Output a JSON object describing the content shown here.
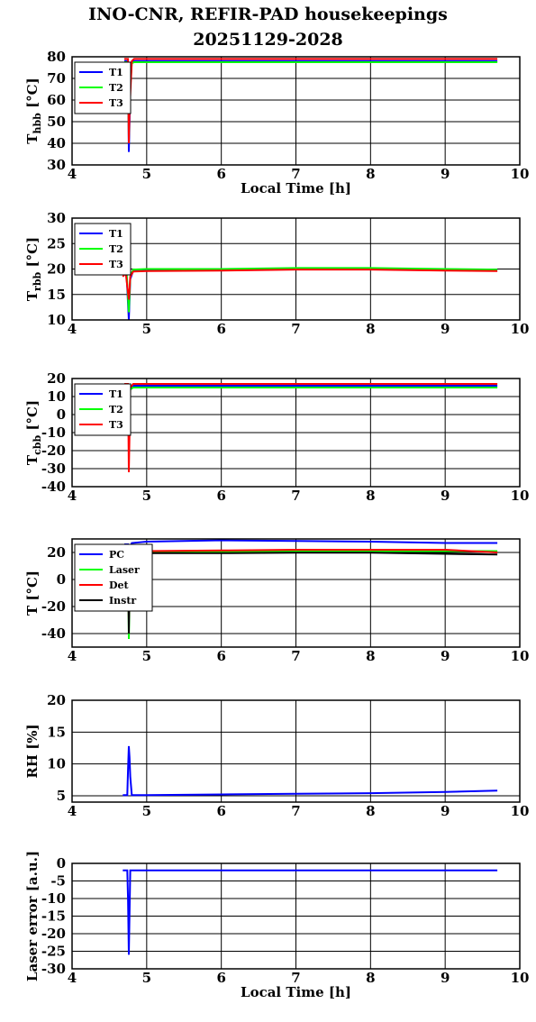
{
  "title": "INO-CNR, REFIR-PAD housekeepings",
  "subtitle": "20251129-2028",
  "colors": {
    "T1": "#0000ff",
    "T2": "#00ff00",
    "T3": "#ff0000",
    "Instr": "#000000"
  },
  "chart_data": [
    {
      "type": "line",
      "ylabel": "T_hbb [°C]",
      "ylabel_main": "T",
      "ylabel_sub": "hbb",
      "ylabel_unit": "[°C]",
      "xlabel": "Local Time [h]",
      "xlim": [
        4,
        10
      ],
      "ylim": [
        30,
        80
      ],
      "xticks": [
        "4",
        "5",
        "6",
        "7",
        "8",
        "9",
        "10"
      ],
      "yticks": [
        "30",
        "40",
        "50",
        "60",
        "70",
        "80"
      ],
      "grid": true,
      "legend_position": "top-left",
      "series": [
        {
          "name": "T1",
          "color": "#0000ff",
          "x": [
            4.7,
            4.75,
            4.76,
            4.77,
            4.78,
            4.8,
            4.83,
            5.0,
            6.0,
            7.0,
            8.0,
            9.0,
            9.7
          ],
          "y": [
            78,
            78,
            36,
            50,
            76,
            77,
            78,
            78,
            78,
            78,
            78,
            78,
            78
          ]
        },
        {
          "name": "T2",
          "color": "#00ff00",
          "x": [
            4.7,
            4.75,
            4.76,
            4.77,
            4.8,
            4.83,
            5.0,
            6.0,
            7.0,
            8.0,
            9.0,
            9.7
          ],
          "y": [
            77.5,
            77.5,
            42,
            60,
            77,
            77.5,
            77.5,
            77.5,
            77.5,
            77.5,
            77.5,
            77.5
          ]
        },
        {
          "name": "T3",
          "color": "#ff0000",
          "x": [
            4.7,
            4.75,
            4.76,
            4.77,
            4.8,
            4.83,
            5.0,
            6.0,
            7.0,
            8.0,
            9.0,
            9.7
          ],
          "y": [
            79,
            79,
            40,
            55,
            78,
            79,
            79,
            79,
            79,
            79,
            79,
            79
          ]
        }
      ]
    },
    {
      "type": "line",
      "ylabel": "T_rbb [°C]",
      "ylabel_main": "T",
      "ylabel_sub": "rbb",
      "ylabel_unit": "[°C]",
      "xlim": [
        4,
        10
      ],
      "ylim": [
        10,
        30
      ],
      "xticks": [
        "4",
        "5",
        "6",
        "7",
        "8",
        "9",
        "10"
      ],
      "yticks": [
        "10",
        "15",
        "20",
        "25",
        "30"
      ],
      "grid": true,
      "legend_position": "top-left",
      "series": [
        {
          "name": "T1",
          "color": "#0000ff",
          "x": [
            4.7,
            4.73,
            4.76,
            4.77,
            4.78,
            4.82,
            5.0,
            6.0,
            7.0,
            8.0,
            9.0,
            9.7
          ],
          "y": [
            19,
            19,
            10,
            14,
            18,
            19.7,
            19.8,
            19.8,
            20,
            20,
            19.8,
            19.7
          ]
        },
        {
          "name": "T2",
          "color": "#00ff00",
          "x": [
            4.7,
            4.73,
            4.76,
            4.77,
            4.78,
            4.82,
            5.0,
            6.0,
            7.0,
            8.0,
            9.0,
            9.7
          ],
          "y": [
            19.5,
            19.5,
            11.5,
            15,
            18.5,
            19.9,
            20,
            20,
            20.2,
            20.2,
            20,
            19.9
          ]
        },
        {
          "name": "T3",
          "color": "#ff0000",
          "x": [
            4.68,
            4.72,
            4.76,
            4.77,
            4.78,
            4.82,
            5.0,
            6.0,
            7.0,
            8.0,
            9.0,
            9.7
          ],
          "y": [
            18.5,
            19.2,
            14,
            16,
            18.5,
            19.5,
            19.6,
            19.7,
            19.9,
            19.9,
            19.7,
            19.6
          ]
        }
      ]
    },
    {
      "type": "line",
      "ylabel": "T_cbb [°C]",
      "ylabel_main": "T",
      "ylabel_sub": "cbb",
      "ylabel_unit": "[°C]",
      "xlim": [
        4,
        10
      ],
      "ylim": [
        -40,
        20
      ],
      "xticks": [
        "4",
        "5",
        "6",
        "7",
        "8",
        "9",
        "10"
      ],
      "yticks": [
        "-40",
        "-30",
        "-20",
        "-10",
        "0",
        "10",
        "20"
      ],
      "grid": true,
      "legend_position": "top-left",
      "series": [
        {
          "name": "T1",
          "color": "#0000ff",
          "x": [
            4.7,
            4.75,
            4.76,
            4.77,
            4.78,
            4.82,
            5.0,
            6.0,
            7.0,
            8.0,
            9.0,
            9.7
          ],
          "y": [
            16,
            16,
            10,
            13,
            15,
            16,
            16,
            16,
            16,
            16,
            16,
            16
          ]
        },
        {
          "name": "T2",
          "color": "#00ff00",
          "x": [
            4.7,
            4.75,
            4.76,
            4.77,
            4.78,
            4.82,
            5.0,
            6.0,
            7.0,
            8.0,
            9.0,
            9.7
          ],
          "y": [
            15,
            15,
            8,
            12,
            14,
            15,
            15,
            15,
            15,
            15,
            15,
            15
          ]
        },
        {
          "name": "T3",
          "color": "#ff0000",
          "x": [
            4.7,
            4.75,
            4.76,
            4.77,
            4.78,
            4.82,
            5.0,
            6.0,
            7.0,
            8.0,
            9.0,
            9.7
          ],
          "y": [
            17,
            17,
            -32,
            -10,
            15,
            17,
            17,
            17,
            17,
            17,
            17,
            17
          ]
        }
      ]
    },
    {
      "type": "line",
      "ylabel": "T [°C]",
      "xlim": [
        4,
        10
      ],
      "ylim": [
        -50,
        30
      ],
      "xticks": [
        "4",
        "5",
        "6",
        "7",
        "8",
        "9",
        "10"
      ],
      "yticks": [
        "-40",
        "-20",
        "0",
        "20"
      ],
      "grid": true,
      "legend_position": "top-left",
      "series": [
        {
          "name": "PC",
          "color": "#0000ff",
          "x": [
            4.7,
            4.75,
            4.76,
            4.77,
            4.8,
            5.0,
            6.0,
            7.0,
            8.0,
            9.0,
            9.7
          ],
          "y": [
            26,
            26,
            15,
            22,
            27,
            28,
            29,
            28.5,
            28,
            27,
            27
          ]
        },
        {
          "name": "Laser",
          "color": "#00ff00",
          "x": [
            4.7,
            4.75,
            4.76,
            4.77,
            4.8,
            5.0,
            6.0,
            7.0,
            8.0,
            9.0,
            9.7
          ],
          "y": [
            20,
            20,
            -44,
            -10,
            19,
            20,
            20.5,
            21,
            21,
            21,
            21
          ]
        },
        {
          "name": "Det",
          "color": "#ff0000",
          "x": [
            4.7,
            4.75,
            4.76,
            4.77,
            4.8,
            5.0,
            6.0,
            7.0,
            8.0,
            9.0,
            9.7
          ],
          "y": [
            20,
            20,
            -30,
            0,
            20,
            21,
            21.5,
            22,
            22,
            22,
            20
          ]
        },
        {
          "name": "Instr",
          "color": "#000000",
          "x": [
            4.7,
            4.75,
            4.76,
            4.77,
            4.8,
            5.0,
            6.0,
            7.0,
            8.0,
            9.0,
            9.7
          ],
          "y": [
            19,
            19,
            -40,
            -5,
            19,
            19.5,
            19.5,
            19.8,
            19.8,
            19,
            18.5
          ]
        }
      ]
    },
    {
      "type": "line",
      "ylabel": "RH [%]",
      "xlim": [
        4,
        10
      ],
      "ylim": [
        4,
        20
      ],
      "xticks": [
        "4",
        "5",
        "6",
        "7",
        "8",
        "9",
        "10"
      ],
      "yticks": [
        "5",
        "10",
        "15",
        "20"
      ],
      "grid": true,
      "series": [
        {
          "name": "",
          "color": "#0000ff",
          "x": [
            4.68,
            4.74,
            4.75,
            4.76,
            4.77,
            4.78,
            4.8,
            5.0,
            6.0,
            7.0,
            8.0,
            9.0,
            9.7
          ],
          "y": [
            5.1,
            5.1,
            9,
            12.8,
            11,
            8,
            5.1,
            5.1,
            5.2,
            5.3,
            5.4,
            5.6,
            5.8
          ]
        }
      ]
    },
    {
      "type": "line",
      "ylabel": "Laser error [a.u.]",
      "xlabel": "Local Time [h]",
      "xlim": [
        4,
        10
      ],
      "ylim": [
        -30,
        0
      ],
      "xticks": [
        "4",
        "5",
        "6",
        "7",
        "8",
        "9",
        "10"
      ],
      "yticks": [
        "-30",
        "-25",
        "-20",
        "-15",
        "-10",
        "-5",
        "0"
      ],
      "grid": true,
      "series": [
        {
          "name": "",
          "color": "#0000ff",
          "x": [
            4.68,
            4.74,
            4.75,
            4.76,
            4.77,
            4.78,
            4.8,
            5.0,
            6.0,
            7.0,
            8.0,
            9.0,
            9.7
          ],
          "y": [
            -2,
            -2,
            -10,
            -26,
            -14,
            -2,
            -2,
            -2,
            -2,
            -2,
            -2,
            -2,
            -2
          ]
        }
      ]
    }
  ]
}
